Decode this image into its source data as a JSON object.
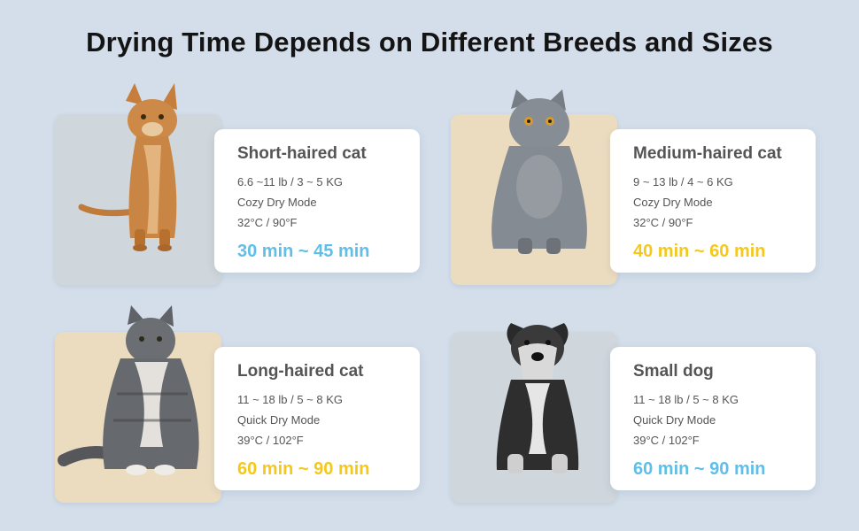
{
  "title": "Drying Time Depends on Different Breeds and Sizes",
  "colors": {
    "background": "#d3deea",
    "photo_gray": "#cfd6dc",
    "photo_beige": "#ecdcbf",
    "time_blue": "#5fbfe8",
    "time_yellow": "#f5c81a"
  },
  "cards": [
    {
      "name": "Short-haired cat",
      "weight": "6.6 ~11 lb / 3 ~ 5 KG",
      "mode": "Cozy Dry Mode",
      "temperature": "32°C / 90°F",
      "time": "30 min ~ 45 min",
      "time_color": "#5fbfe8",
      "photo_bg": "#cfd6dc",
      "icon": "orange-cat-image"
    },
    {
      "name": "Medium-haired cat",
      "weight": "9 ~ 13 lb / 4 ~ 6 KG",
      "mode": "Cozy Dry Mode",
      "temperature": "32°C / 90°F",
      "time": "40 min ~ 60 min",
      "time_color": "#f5c81a",
      "photo_bg": "#ecdcbf",
      "icon": "gray-cat-image"
    },
    {
      "name": "Long-haired cat",
      "weight": "11 ~ 18 lb / 5 ~ 8 KG",
      "mode": "Quick Dry Mode",
      "temperature": "39°C / 102°F",
      "time": "60 min ~ 90 min",
      "time_color": "#f5c81a",
      "photo_bg": "#ecdcbf",
      "icon": "tabby-cat-image"
    },
    {
      "name": "Small dog",
      "weight": "11 ~ 18 lb / 5 ~ 8 KG",
      "mode": "Quick Dry Mode",
      "temperature": "39°C / 102°F",
      "time": "60 min ~ 90 min",
      "time_color": "#5fbfe8",
      "photo_bg": "#cfd6dc",
      "icon": "schnauzer-dog-image"
    }
  ]
}
